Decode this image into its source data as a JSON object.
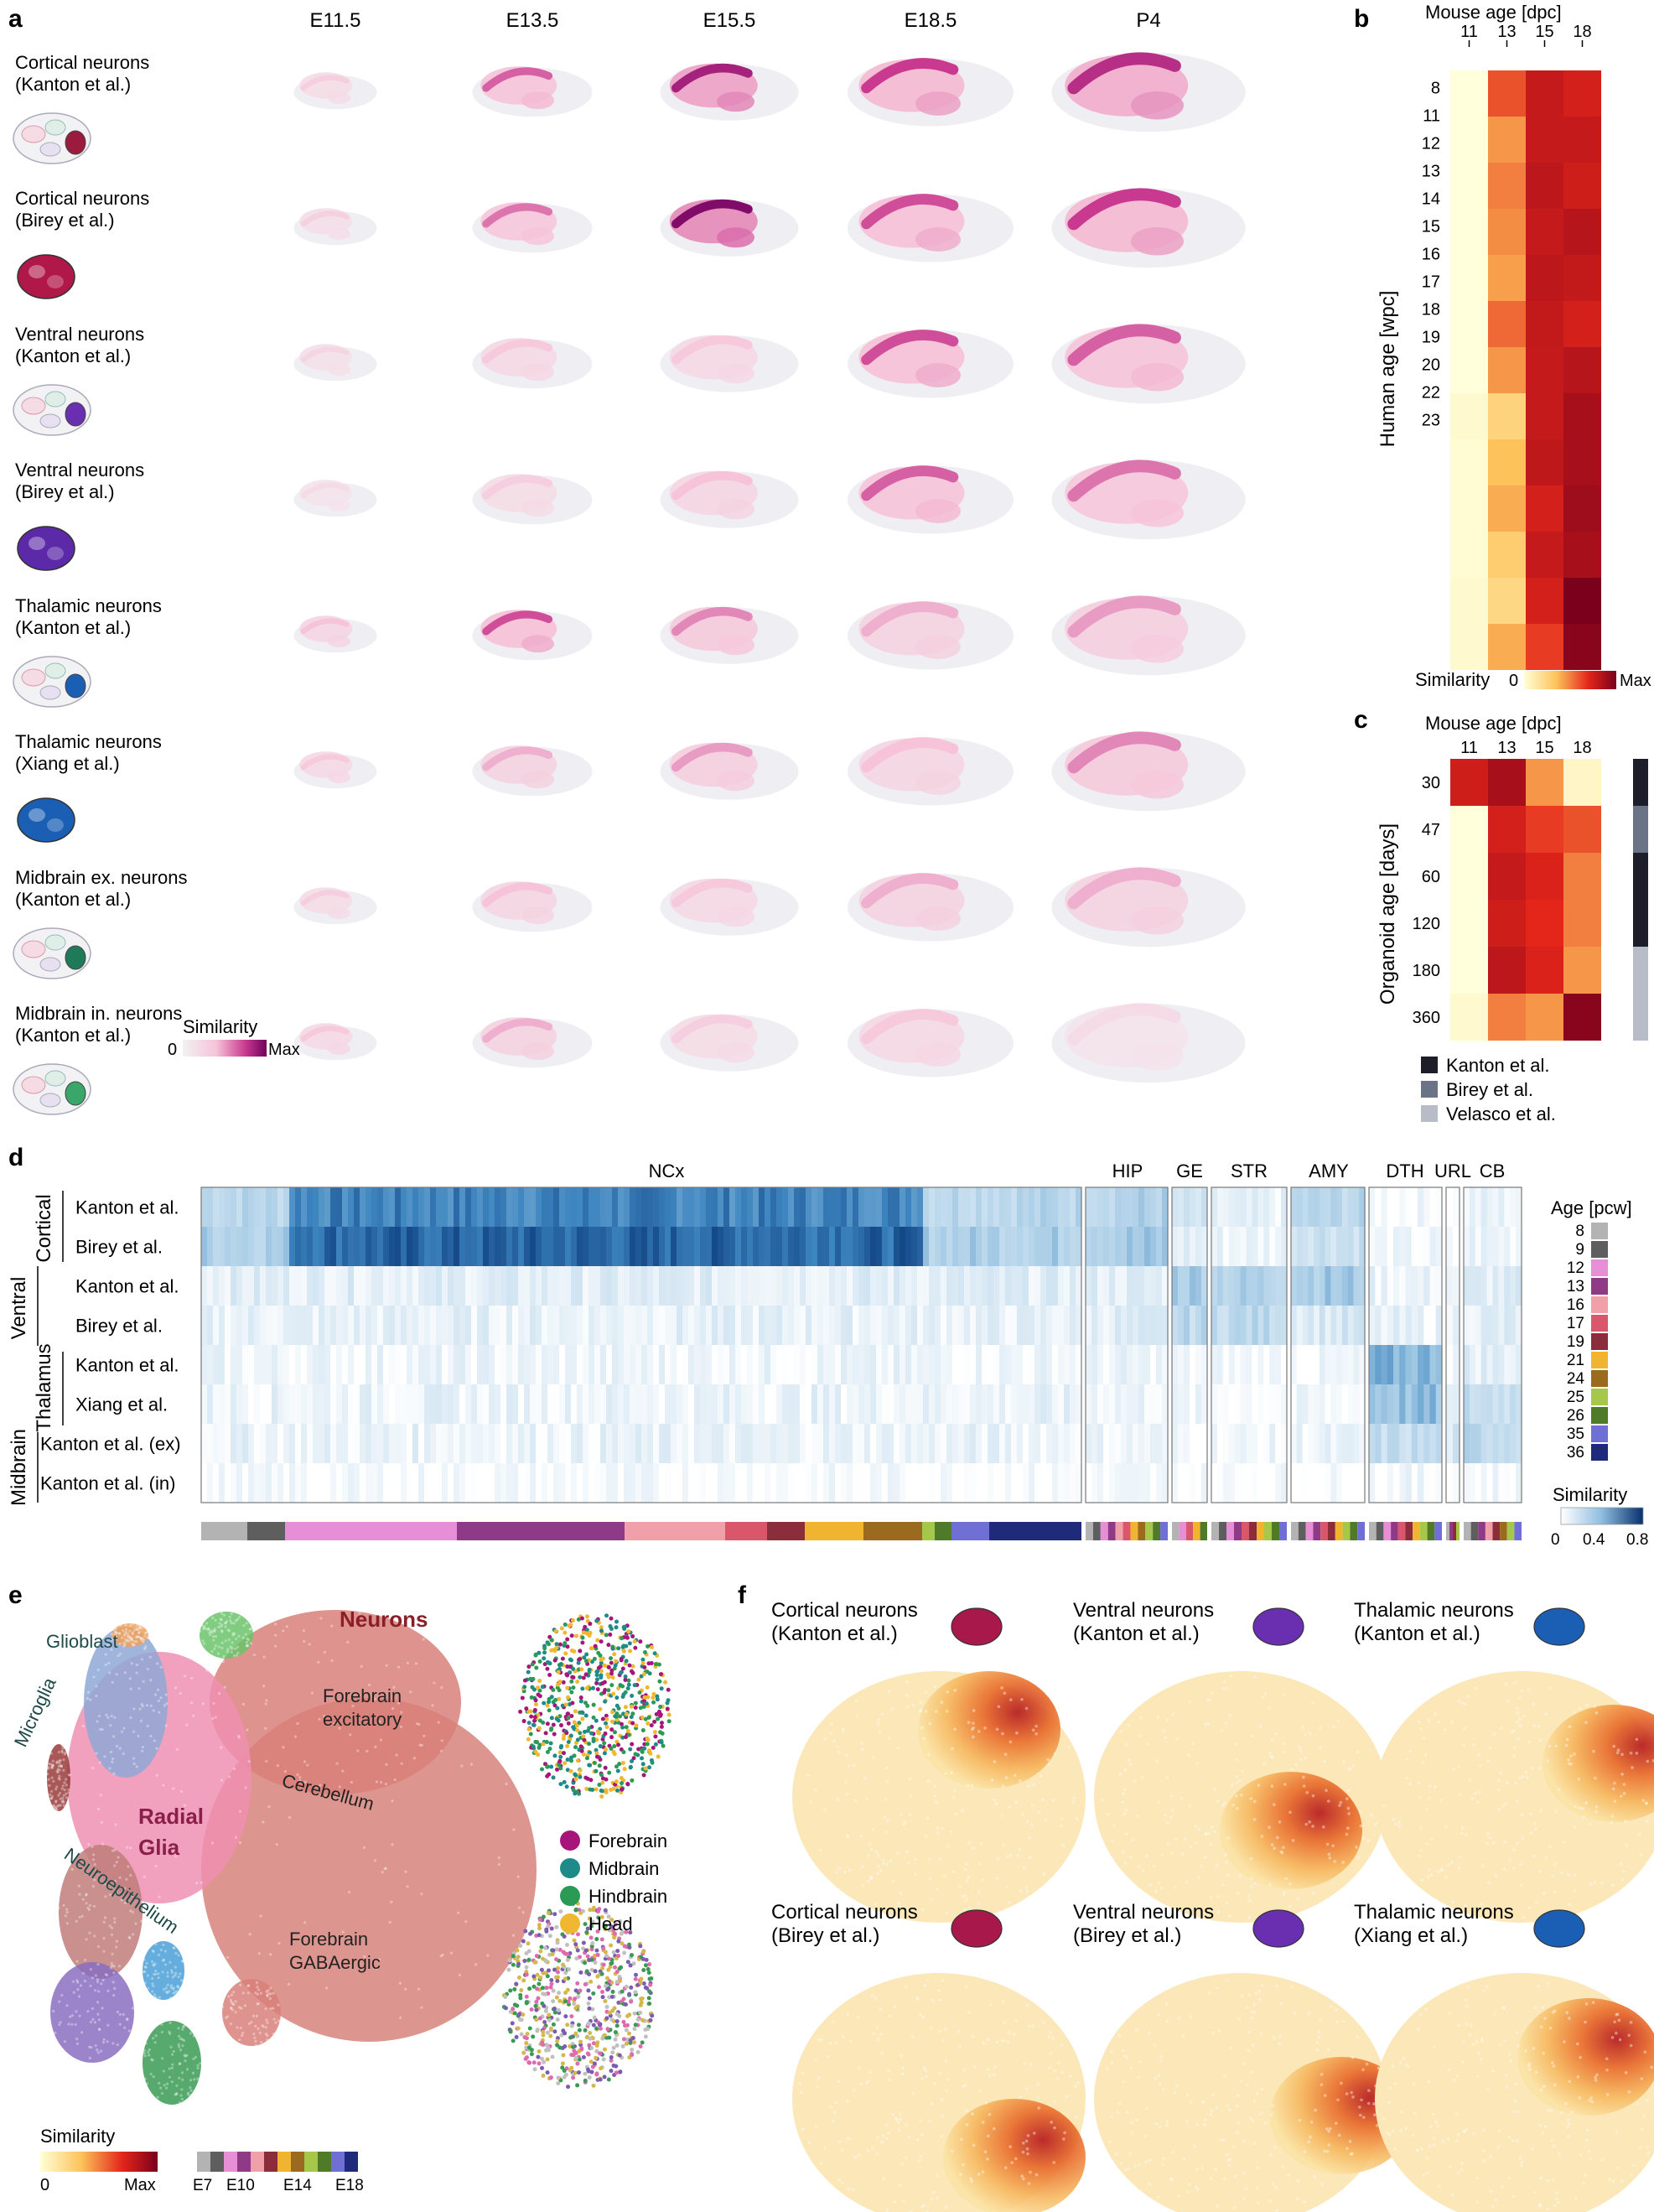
{
  "panels": {
    "a": "a",
    "b": "b",
    "c": "c",
    "d": "d",
    "e": "e",
    "f": "f"
  },
  "panel_a": {
    "stages": [
      "E11.5",
      "E13.5",
      "E15.5",
      "E18.5",
      "P4"
    ],
    "rows": [
      {
        "l1": "Cortical neurons",
        "l2": "(Kanton et al.)",
        "icon": "organoid-cortical-icon",
        "color": "#9b1b3e"
      },
      {
        "l1": "Cortical neurons",
        "l2": "(Birey et al.)",
        "icon": "spheroid-cortical-icon",
        "color": "#b0184a"
      },
      {
        "l1": "Ventral neurons",
        "l2": "(Kanton et al.)",
        "icon": "organoid-ventral-icon",
        "color": "#6a2fb0"
      },
      {
        "l1": "Ventral neurons",
        "l2": "(Birey et al.)",
        "icon": "spheroid-ventral-icon",
        "color": "#5c2aa8"
      },
      {
        "l1": "Thalamic neurons",
        "l2": "(Kanton et al.)",
        "icon": "organoid-thalamic-icon",
        "color": "#1a5fb4"
      },
      {
        "l1": "Thalamic neurons",
        "l2": "(Xiang et al.)",
        "icon": "spheroid-thalamic-icon",
        "color": "#1a5fb4"
      },
      {
        "l1": "Midbrain ex. neurons",
        "l2": "(Kanton et al.)",
        "icon": "organoid-midbrain-ex-icon",
        "color": "#1f7a5a"
      },
      {
        "l1": "Midbrain in. neurons",
        "l2": "(Kanton et al.)",
        "icon": "organoid-midbrain-in-icon",
        "color": "#3aa66a"
      }
    ],
    "legend": {
      "title": "Similarity",
      "min": "0",
      "max": "Max"
    },
    "intensity": [
      [
        0.3,
        0.65,
        0.85,
        0.75,
        0.8
      ],
      [
        0.28,
        0.6,
        0.95,
        0.7,
        0.75
      ],
      [
        0.25,
        0.35,
        0.35,
        0.7,
        0.65
      ],
      [
        0.2,
        0.3,
        0.4,
        0.65,
        0.6
      ],
      [
        0.4,
        0.7,
        0.55,
        0.45,
        0.5
      ],
      [
        0.35,
        0.45,
        0.5,
        0.4,
        0.55
      ],
      [
        0.3,
        0.4,
        0.35,
        0.45,
        0.45
      ],
      [
        0.35,
        0.45,
        0.3,
        0.35,
        0.2
      ]
    ]
  },
  "panel_b": {
    "title": "Mouse age [dpc]",
    "ylabel": "Human age [wpc]",
    "cols": [
      "11",
      "13",
      "15",
      "18"
    ],
    "rows": [
      "8",
      "11",
      "12",
      "13",
      "14",
      "15",
      "16",
      "17",
      "18",
      "19",
      "20",
      "22",
      "23"
    ],
    "legend": {
      "title": "Similarity",
      "min": "0",
      "max": "Max"
    }
  },
  "panel_c": {
    "title": "Mouse age [dpc]",
    "ylabel": "Organoid age [days]",
    "cols": [
      "11",
      "13",
      "15",
      "18"
    ],
    "rows": [
      "30",
      "47",
      "60",
      "120",
      "180",
      "360"
    ],
    "legend": [
      {
        "label": "Kanton et al.",
        "color": "#1c1f2a"
      },
      {
        "label": "Birey et al.",
        "color": "#6b7386"
      },
      {
        "label": "Velasco et al.",
        "color": "#b8bcc8"
      }
    ]
  },
  "panel_d": {
    "regions": [
      "NCx",
      "HIP",
      "GE",
      "STR",
      "AMY",
      "DTH",
      "URL",
      "CB"
    ],
    "rows": [
      "Kanton et al.",
      "Birey et al.",
      "Kanton et al.",
      "Birey et al.",
      "Kanton et al.",
      "Xiang et al.",
      "Kanton et al. (ex)",
      "Kanton et al. (in)"
    ],
    "groups": [
      "Cortical",
      "Ventral",
      "Thalamus",
      "Midbrain"
    ],
    "age_title": "Age [pcw]",
    "ages": [
      {
        "label": "8",
        "color": "#b3b3b3"
      },
      {
        "label": "9",
        "color": "#5e5e5e"
      },
      {
        "label": "12",
        "color": "#e78fd6"
      },
      {
        "label": "13",
        "color": "#8e3a86"
      },
      {
        "label": "16",
        "color": "#f0a0a8"
      },
      {
        "label": "17",
        "color": "#d9566b"
      },
      {
        "label": "19",
        "color": "#8c2d3c"
      },
      {
        "label": "21",
        "color": "#f0b430"
      },
      {
        "label": "24",
        "color": "#9a6b1e"
      },
      {
        "label": "25",
        "color": "#a6c84a"
      },
      {
        "label": "26",
        "color": "#4f7a2a"
      },
      {
        "label": "35",
        "color": "#6f6fd6"
      },
      {
        "label": "36",
        "color": "#1f2a7a"
      }
    ],
    "legend": {
      "title": "Similarity",
      "ticks": [
        "0",
        "0.4",
        "0.8"
      ]
    }
  },
  "panel_e": {
    "clusters": [
      {
        "label": "Neurons",
        "color": "#8a1f2a"
      },
      {
        "label": "Glioblast",
        "color": "#1f4a4a"
      },
      {
        "label": "Forebrain",
        "color": "#222"
      },
      {
        "label": "excitatory",
        "color": "#222"
      },
      {
        "label": "Microglia",
        "color": "#1f4a4a"
      },
      {
        "label": "Cerebellum",
        "color": "#222"
      },
      {
        "label": "Radial",
        "color": "#8a1f4a"
      },
      {
        "label": "Glia",
        "color": "#8a1f4a"
      },
      {
        "label": "Neuroepithelium",
        "color": "#1f4a4a"
      },
      {
        "label": "Forebrain",
        "color": "#222"
      },
      {
        "label": "GABAergic",
        "color": "#222"
      }
    ],
    "region_legend": [
      {
        "label": "Forebrain",
        "color": "#a8157a"
      },
      {
        "label": "Midbrain",
        "color": "#1f8a8a"
      },
      {
        "label": "Hindbrain",
        "color": "#2a9a55"
      },
      {
        "label": "Head",
        "color": "#f0b830"
      }
    ],
    "legend": {
      "title": "Similarity",
      "min": "0",
      "max": "Max"
    },
    "ages": [
      "E7",
      "E10",
      "E14",
      "E18"
    ]
  },
  "panel_f": {
    "plots": [
      {
        "l1": "Cortical neurons",
        "l2": "(Kanton et al.)"
      },
      {
        "l1": "Ventral neurons",
        "l2": "(Kanton et al.)"
      },
      {
        "l1": "Thalamic neurons",
        "l2": "(Kanton et al.)"
      },
      {
        "l1": "Cortical neurons",
        "l2": "(Birey et al.)"
      },
      {
        "l1": "Ventral neurons",
        "l2": "(Birey et al.)"
      },
      {
        "l1": "Thalamic neurons",
        "l2": "(Xiang et al.)"
      }
    ]
  }
}
